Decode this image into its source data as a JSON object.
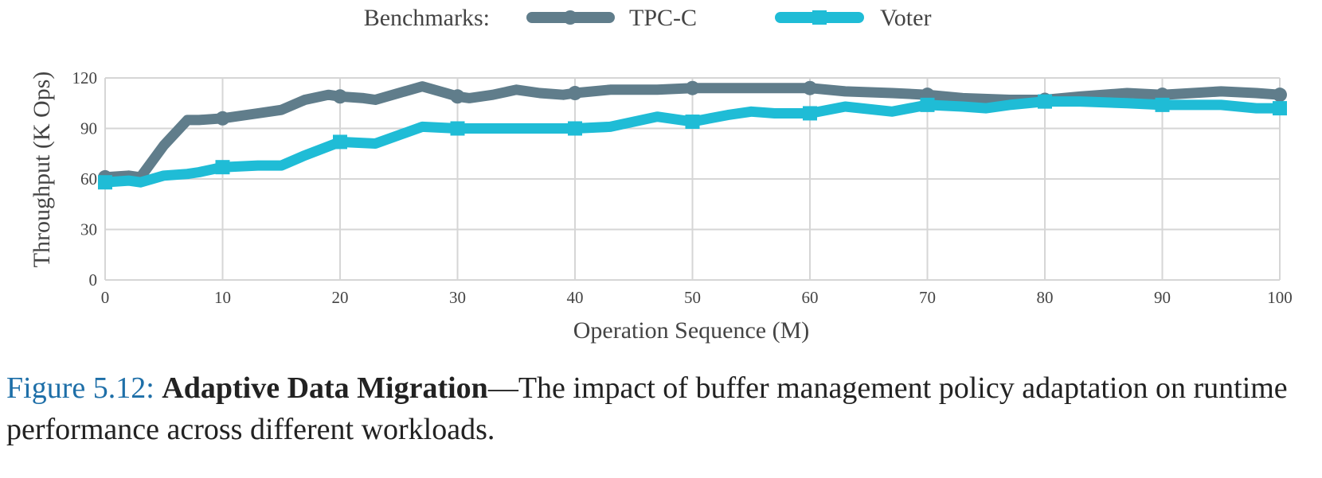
{
  "legend": {
    "title": "Benchmarks:"
  },
  "chart_data": {
    "type": "line",
    "xlabel": "Operation Sequence (M)",
    "ylabel": "Throughput (K Ops)",
    "xlim": [
      0,
      100
    ],
    "ylim": [
      0,
      120
    ],
    "x_ticks": [
      0,
      10,
      20,
      30,
      40,
      50,
      60,
      70,
      80,
      90,
      100
    ],
    "y_ticks": [
      0,
      30,
      60,
      90,
      120
    ],
    "grid": true,
    "legend_position": "top-center",
    "series": [
      {
        "name": "TPC-C",
        "color": "#607d8b",
        "marker": "circle",
        "marker_x": [
          0,
          10,
          20,
          30,
          40,
          50,
          60,
          70,
          80,
          90,
          100
        ],
        "points": [
          [
            0,
            61
          ],
          [
            2,
            62
          ],
          [
            3,
            61
          ],
          [
            5,
            80
          ],
          [
            7,
            95
          ],
          [
            8,
            95
          ],
          [
            10,
            96
          ],
          [
            13,
            99
          ],
          [
            15,
            101
          ],
          [
            17,
            107
          ],
          [
            19,
            110
          ],
          [
            20,
            109
          ],
          [
            22,
            108
          ],
          [
            23,
            107
          ],
          [
            25,
            111
          ],
          [
            27,
            115
          ],
          [
            29,
            111
          ],
          [
            30,
            109
          ],
          [
            31,
            108
          ],
          [
            33,
            110
          ],
          [
            35,
            113
          ],
          [
            37,
            111
          ],
          [
            39,
            110
          ],
          [
            40,
            111
          ],
          [
            43,
            113
          ],
          [
            47,
            113
          ],
          [
            50,
            114
          ],
          [
            53,
            114
          ],
          [
            57,
            114
          ],
          [
            60,
            114
          ],
          [
            63,
            112
          ],
          [
            67,
            111
          ],
          [
            70,
            110
          ],
          [
            73,
            108
          ],
          [
            77,
            107
          ],
          [
            80,
            107
          ],
          [
            83,
            109
          ],
          [
            87,
            111
          ],
          [
            90,
            110
          ],
          [
            95,
            112
          ],
          [
            98,
            111
          ],
          [
            100,
            110
          ]
        ]
      },
      {
        "name": "Voter",
        "color": "#1fbcd6",
        "marker": "square",
        "marker_x": [
          0,
          10,
          20,
          30,
          40,
          50,
          60,
          70,
          80,
          90,
          100
        ],
        "points": [
          [
            0,
            58
          ],
          [
            2,
            59
          ],
          [
            3,
            58
          ],
          [
            5,
            62
          ],
          [
            7,
            63
          ],
          [
            8,
            64
          ],
          [
            10,
            67
          ],
          [
            13,
            68
          ],
          [
            15,
            68
          ],
          [
            17,
            74
          ],
          [
            20,
            82
          ],
          [
            23,
            81
          ],
          [
            27,
            91
          ],
          [
            30,
            90
          ],
          [
            33,
            90
          ],
          [
            37,
            90
          ],
          [
            40,
            90
          ],
          [
            43,
            91
          ],
          [
            47,
            97
          ],
          [
            50,
            94
          ],
          [
            53,
            98
          ],
          [
            55,
            100
          ],
          [
            57,
            99
          ],
          [
            60,
            99
          ],
          [
            63,
            103
          ],
          [
            67,
            100
          ],
          [
            70,
            104
          ],
          [
            73,
            103
          ],
          [
            75,
            102
          ],
          [
            77,
            104
          ],
          [
            80,
            106
          ],
          [
            83,
            106
          ],
          [
            87,
            105
          ],
          [
            90,
            104
          ],
          [
            95,
            104
          ],
          [
            98,
            102
          ],
          [
            100,
            102
          ]
        ]
      }
    ]
  },
  "caption": {
    "figure_number": "Figure 5.12:",
    "title": "Adaptive Data Migration",
    "dash": "—",
    "text": "The impact of buffer management policy adaptation on runtime performance across different workloads."
  }
}
